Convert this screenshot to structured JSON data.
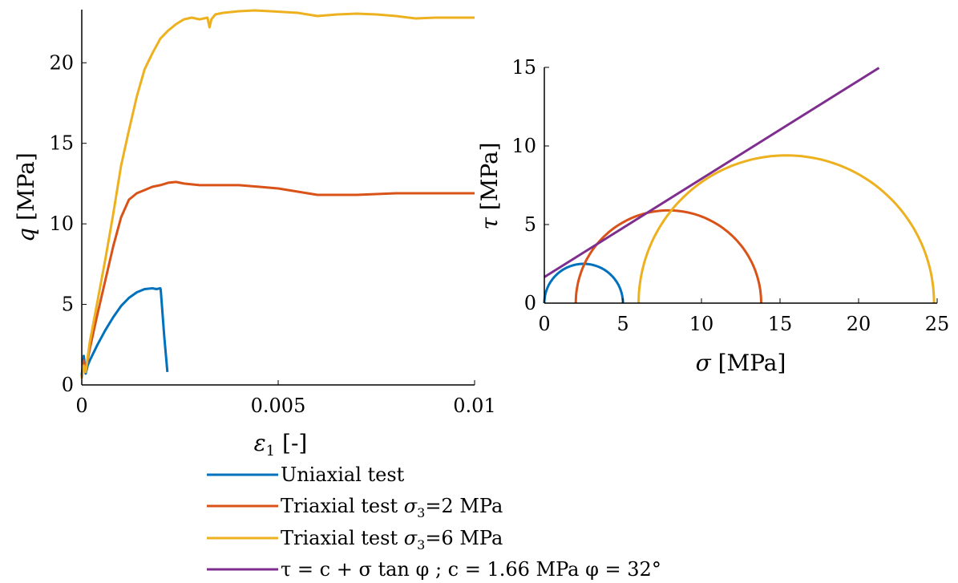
{
  "colors": {
    "uniaxial": "#0072BD",
    "triaxial2": "#D95319",
    "triaxial6": "#EDB120",
    "envelope": "#7E2F8E",
    "axis": "#000000"
  },
  "chart_data": [
    {
      "type": "line",
      "title": "",
      "xlabel": "ε₁ [-]",
      "ylabel": "q [MPa]",
      "xlim": [
        0,
        0.01
      ],
      "ylim": [
        0,
        23.3
      ],
      "xticks": [
        0,
        0.005,
        0.01
      ],
      "xtick_labels": [
        "0",
        "0.005",
        "0.01"
      ],
      "yticks": [
        0,
        5,
        10,
        15,
        20
      ],
      "ytick_labels": [
        "0",
        "5",
        "10",
        "15",
        "20"
      ],
      "grid": false,
      "series": [
        {
          "name": "Uniaxial test",
          "color_key": "uniaxial",
          "x": [
            0,
            5e-05,
            0.0001,
            0.00015,
            0.0002,
            0.0004,
            0.0006,
            0.0008,
            0.001,
            0.0012,
            0.0014,
            0.0016,
            0.0018,
            0.0019,
            0.002,
            0.00201,
            0.0021,
            0.00218
          ],
          "y": [
            0.6,
            1.8,
            0.7,
            1.2,
            1.5,
            2.5,
            3.4,
            4.2,
            4.9,
            5.4,
            5.75,
            5.95,
            6.0,
            5.95,
            6.0,
            5.9,
            3.0,
            0.8
          ]
        },
        {
          "name": "Triaxial test σ₃=2 MPa",
          "color_key": "triaxial2",
          "x": [
            0,
            5e-05,
            0.0001,
            0.0002,
            0.0004,
            0.0006,
            0.0008,
            0.001,
            0.0012,
            0.0014,
            0.0016,
            0.0018,
            0.002,
            0.0022,
            0.0024,
            0.0026,
            0.003,
            0.0035,
            0.004,
            0.0045,
            0.005,
            0.0055,
            0.006,
            0.007,
            0.008,
            0.009,
            0.01
          ],
          "y": [
            0.5,
            1.5,
            0.9,
            2.2,
            4.4,
            6.5,
            8.6,
            10.4,
            11.5,
            11.9,
            12.1,
            12.3,
            12.4,
            12.55,
            12.6,
            12.5,
            12.4,
            12.4,
            12.4,
            12.3,
            12.2,
            12.0,
            11.8,
            11.8,
            11.9,
            11.9,
            11.9
          ]
        },
        {
          "name": "Triaxial test σ₃=6 MPa",
          "color_key": "triaxial6",
          "x": [
            0,
            5e-05,
            0.0001,
            0.0002,
            0.0004,
            0.0006,
            0.0008,
            0.001,
            0.0012,
            0.0014,
            0.0016,
            0.0018,
            0.002,
            0.0022,
            0.0024,
            0.0026,
            0.0028,
            0.003,
            0.0032,
            0.00325,
            0.0033,
            0.0034,
            0.0036,
            0.004,
            0.0044,
            0.0048,
            0.0055,
            0.006,
            0.0065,
            0.007,
            0.0075,
            0.008,
            0.0085,
            0.009,
            0.0095,
            0.01
          ],
          "y": [
            0.4,
            1.2,
            0.8,
            2.6,
            5.2,
            7.8,
            10.6,
            13.6,
            15.8,
            17.9,
            19.6,
            20.6,
            21.5,
            22.0,
            22.4,
            22.7,
            22.8,
            22.7,
            22.8,
            22.2,
            22.7,
            23.0,
            23.1,
            23.2,
            23.25,
            23.2,
            23.1,
            22.9,
            23.0,
            23.05,
            23.0,
            22.9,
            22.75,
            22.8,
            22.8,
            22.8
          ]
        }
      ]
    },
    {
      "type": "line",
      "title": "",
      "xlabel": "σ [MPa]",
      "ylabel": "τ [MPa]",
      "xlim": [
        0,
        25
      ],
      "ylim": [
        0,
        15
      ],
      "xticks": [
        0,
        5,
        10,
        15,
        20,
        25
      ],
      "xtick_labels": [
        "0",
        "5",
        "10",
        "15",
        "20",
        "25"
      ],
      "yticks": [
        0,
        5,
        10,
        15
      ],
      "ytick_labels": [
        "0",
        "5",
        "10",
        "15"
      ],
      "grid": false,
      "circles": [
        {
          "name": "Uniaxial test",
          "color_key": "uniaxial",
          "sigma3": 0,
          "sigma1": 5.0
        },
        {
          "name": "Triaxial test σ₃=2 MPa",
          "color_key": "triaxial2",
          "sigma3": 2,
          "sigma1": 13.8
        },
        {
          "name": "Triaxial test σ₃=6 MPa",
          "color_key": "triaxial6",
          "sigma3": 6,
          "sigma1": 24.8
        }
      ],
      "envelope": {
        "name": "τ = c + σ tan φ ; c = 1.66 MPa φ = 32°",
        "color_key": "envelope",
        "c": 1.66,
        "phi_deg": 32,
        "x_range": [
          0,
          21.3
        ]
      }
    }
  ],
  "legend": {
    "placement": "bottom-center",
    "entries": [
      {
        "label_plain": "Uniaxial test",
        "color_key": "uniaxial"
      },
      {
        "label_plain": "Triaxial test σ3=2 MPa",
        "prefix": "Triaxial test ",
        "sym": "σ",
        "sub": "3",
        "suffix": "=2 MPa",
        "color_key": "triaxial2"
      },
      {
        "label_plain": "Triaxial test σ3=6 MPa",
        "prefix": "Triaxial test ",
        "sym": "σ",
        "sub": "3",
        "suffix": "=6 MPa",
        "color_key": "triaxial6"
      },
      {
        "label_plain": "τ = c + σ tan φ ; c = 1.66 MPa φ = 32°",
        "color_key": "envelope"
      }
    ]
  }
}
